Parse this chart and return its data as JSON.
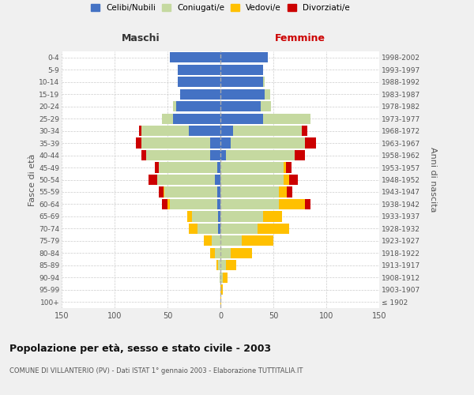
{
  "age_groups": [
    "100+",
    "95-99",
    "90-94",
    "85-89",
    "80-84",
    "75-79",
    "70-74",
    "65-69",
    "60-64",
    "55-59",
    "50-54",
    "45-49",
    "40-44",
    "35-39",
    "30-34",
    "25-29",
    "20-24",
    "15-19",
    "10-14",
    "5-9",
    "0-4"
  ],
  "birth_years": [
    "≤ 1902",
    "1903-1907",
    "1908-1912",
    "1913-1917",
    "1918-1922",
    "1923-1927",
    "1928-1932",
    "1933-1937",
    "1938-1942",
    "1943-1947",
    "1948-1952",
    "1953-1957",
    "1958-1962",
    "1963-1967",
    "1968-1972",
    "1973-1977",
    "1978-1982",
    "1983-1987",
    "1988-1992",
    "1993-1997",
    "1998-2002"
  ],
  "colors": {
    "celibi": "#4472c4",
    "coniugati": "#c5d9a0",
    "vedovi": "#ffc000",
    "divorziati": "#cc0000"
  },
  "m_cel": [
    0,
    0,
    0,
    0,
    0,
    0,
    2,
    2,
    3,
    3,
    5,
    3,
    10,
    10,
    30,
    45,
    42,
    38,
    40,
    40,
    48
  ],
  "m_con": [
    0,
    0,
    1,
    2,
    5,
    8,
    20,
    25,
    45,
    50,
    55,
    55,
    60,
    65,
    45,
    10,
    3,
    0,
    0,
    0,
    0
  ],
  "m_ved": [
    0,
    0,
    0,
    2,
    5,
    8,
    8,
    4,
    2,
    1,
    0,
    0,
    0,
    0,
    0,
    0,
    0,
    0,
    0,
    0,
    0
  ],
  "m_div": [
    0,
    0,
    0,
    0,
    0,
    0,
    0,
    0,
    5,
    4,
    8,
    4,
    5,
    5,
    2,
    0,
    0,
    0,
    0,
    0,
    0
  ],
  "f_cel": [
    0,
    0,
    0,
    0,
    0,
    0,
    0,
    0,
    0,
    0,
    0,
    0,
    5,
    10,
    12,
    40,
    38,
    42,
    40,
    40,
    45
  ],
  "f_con": [
    0,
    0,
    2,
    5,
    10,
    20,
    35,
    40,
    55,
    55,
    60,
    60,
    65,
    70,
    65,
    45,
    10,
    5,
    2,
    0,
    0
  ],
  "f_ved": [
    1,
    2,
    5,
    10,
    20,
    30,
    30,
    18,
    25,
    8,
    5,
    2,
    0,
    0,
    0,
    0,
    0,
    0,
    0,
    0,
    0
  ],
  "f_div": [
    0,
    0,
    0,
    0,
    0,
    0,
    0,
    0,
    5,
    5,
    8,
    5,
    10,
    10,
    5,
    0,
    0,
    0,
    0,
    0,
    0
  ],
  "xlim": 150,
  "title": "Popolazione per età, sesso e stato civile - 2003",
  "subtitle": "COMUNE DI VILLANTERIO (PV) - Dati ISTAT 1° gennaio 2003 - Elaborazione TUTTITALIA.IT",
  "ylabel_left": "Fasce di età",
  "ylabel_right": "Anni di nascita",
  "xlabel_maschi": "Maschi",
  "xlabel_femmine": "Femmine",
  "legend_labels": [
    "Celibi/Nubili",
    "Coniugati/e",
    "Vedovi/e",
    "Divorziati/e"
  ],
  "background_color": "#f0f0f0",
  "plot_bg_color": "#ffffff"
}
